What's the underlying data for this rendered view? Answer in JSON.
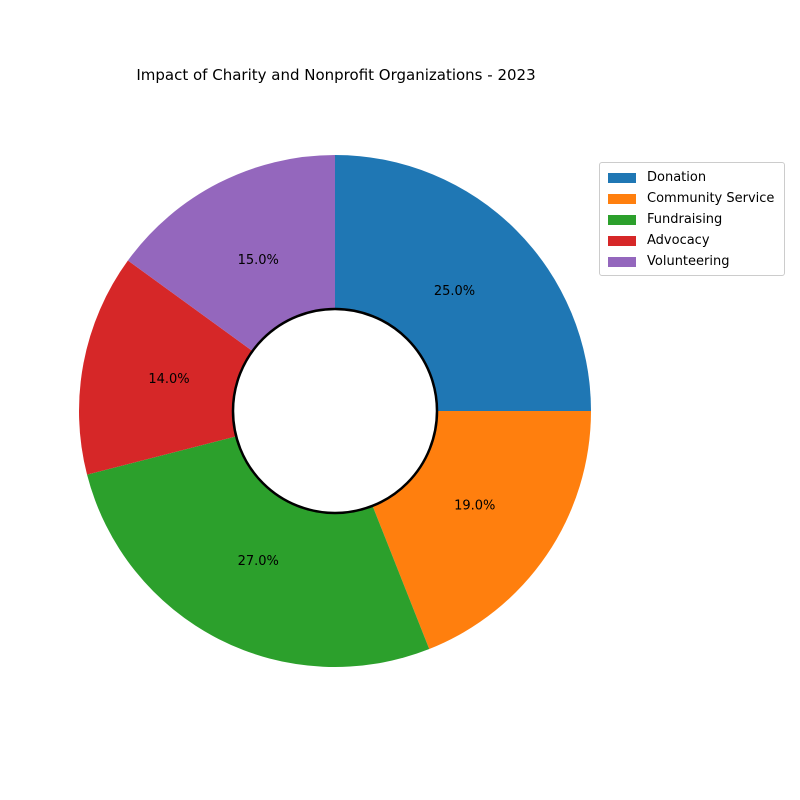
{
  "chart_data": {
    "type": "pie",
    "variant": "donut",
    "title": "Impact of Charity and Nonprofit Organizations - 2023",
    "categories": [
      "Donation",
      "Community Service",
      "Fundraising",
      "Advocacy",
      "Volunteering"
    ],
    "values": [
      25.0,
      19.0,
      27.0,
      14.0,
      15.0
    ],
    "labels": [
      "25.0%",
      "19.0%",
      "27.0%",
      "14.0%",
      "15.0%"
    ],
    "colors": [
      "#1f77b4",
      "#ff7f0e",
      "#2ca02c",
      "#d62728",
      "#9467bd"
    ],
    "start": "top",
    "direction": "clockwise",
    "center_hole": true,
    "legend_position": "upper-right outside"
  }
}
